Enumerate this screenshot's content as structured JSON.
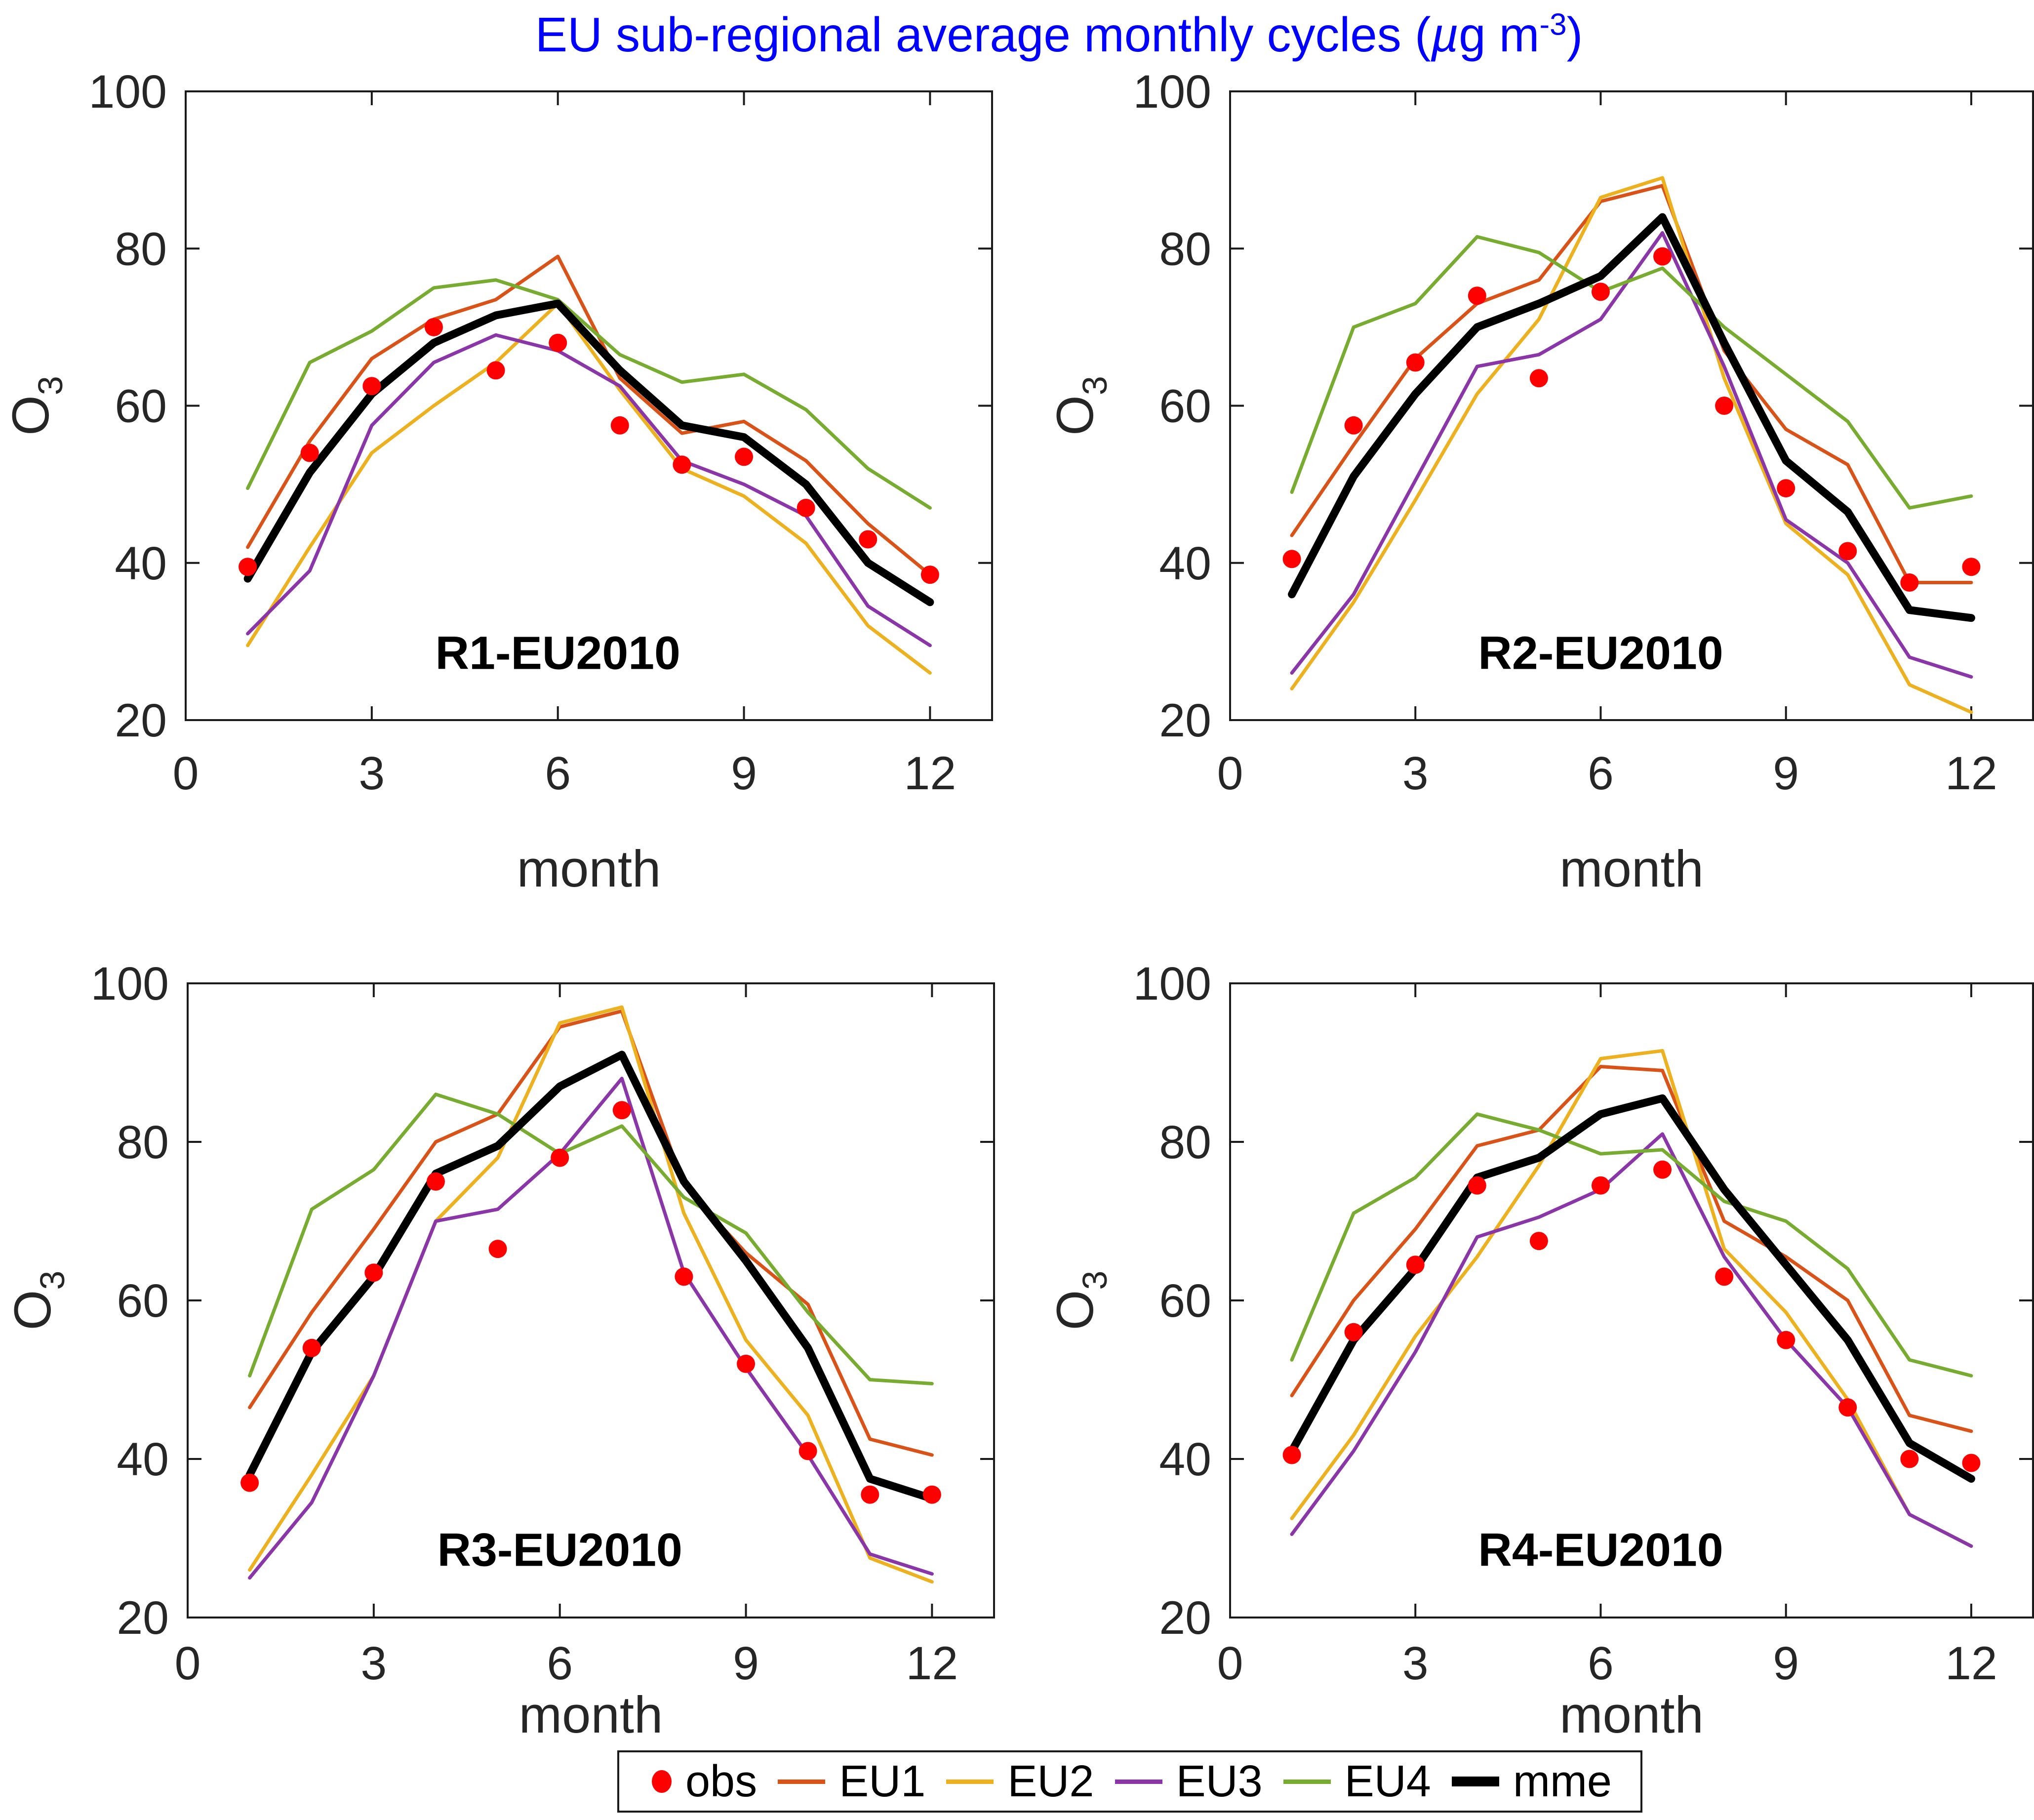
{
  "title": {
    "pre": "EU sub-regional average monthly cycles (",
    "mu": "µ",
    "mid": "g m",
    "sup": "-3",
    "post": ")"
  },
  "colors": {
    "obs": "#FF0000",
    "eu1": "#D95319",
    "eu2": "#EDB120",
    "eu3": "#8A35A8",
    "eu4": "#77AC30",
    "mme": "#000000",
    "title": "#0000FF",
    "axis": "#1A1A1A",
    "tick_text": "#262626"
  },
  "legend": {
    "entries": [
      {
        "label": "obs",
        "color_key": "obs",
        "marker": "dot"
      },
      {
        "label": "EU1",
        "color_key": "eu1",
        "marker": "line"
      },
      {
        "label": "EU2",
        "color_key": "eu2",
        "marker": "line"
      },
      {
        "label": "EU3",
        "color_key": "eu3",
        "marker": "line"
      },
      {
        "label": "EU4",
        "color_key": "eu4",
        "marker": "line"
      },
      {
        "label": "mme",
        "color_key": "mme",
        "marker": "thick-line"
      }
    ]
  },
  "chart_data": [
    {
      "type": "line",
      "panel_label": "R1-EU2010",
      "xlabel": "month",
      "ylabel": "O",
      "ylabel_sub": "3",
      "xlim": [
        0,
        13
      ],
      "ylim": [
        20,
        100
      ],
      "xticks": [
        0,
        3,
        6,
        9,
        12
      ],
      "yticks": [
        20,
        40,
        60,
        80,
        100
      ],
      "grid": false,
      "x": [
        1,
        2,
        3,
        4,
        5,
        6,
        7,
        8,
        9,
        10,
        11,
        12
      ],
      "series": [
        {
          "name": "obs",
          "color_key": "obs",
          "marker": "dot",
          "values": [
            39.5,
            54,
            62.5,
            70,
            64.5,
            68,
            57.5,
            52.5,
            53.5,
            47,
            43,
            38.5
          ]
        },
        {
          "name": "EU1",
          "color_key": "eu1",
          "values": [
            42,
            55.5,
            66,
            71,
            73.5,
            79,
            63.5,
            56.5,
            58,
            53,
            45,
            38.5
          ]
        },
        {
          "name": "EU2",
          "color_key": "eu2",
          "values": [
            29.5,
            42,
            54,
            60,
            65.5,
            73,
            62,
            52,
            48.5,
            42.5,
            32,
            26
          ]
        },
        {
          "name": "EU3",
          "color_key": "eu3",
          "values": [
            31,
            39,
            57.5,
            65.5,
            69,
            67,
            62.5,
            53,
            50,
            46,
            34.5,
            29.5
          ]
        },
        {
          "name": "EU4",
          "color_key": "eu4",
          "values": [
            49.5,
            65.5,
            69.5,
            75,
            76,
            73.5,
            66.5,
            63,
            64,
            59.5,
            52,
            47
          ]
        },
        {
          "name": "mme",
          "color_key": "mme",
          "thick": true,
          "values": [
            38,
            51.5,
            61.5,
            68,
            71.5,
            73,
            64.5,
            57.5,
            56,
            50,
            40,
            35
          ]
        }
      ]
    },
    {
      "type": "line",
      "panel_label": "R2-EU2010",
      "xlabel": "month",
      "ylabel": "O",
      "ylabel_sub": "3",
      "xlim": [
        0,
        13
      ],
      "ylim": [
        20,
        100
      ],
      "xticks": [
        0,
        3,
        6,
        9,
        12
      ],
      "yticks": [
        20,
        40,
        60,
        80,
        100
      ],
      "grid": false,
      "x": [
        1,
        2,
        3,
        4,
        5,
        6,
        7,
        8,
        9,
        10,
        11,
        12
      ],
      "series": [
        {
          "name": "obs",
          "color_key": "obs",
          "marker": "dot",
          "values": [
            40.5,
            57.5,
            65.5,
            74,
            63.5,
            74.5,
            79,
            60,
            49.5,
            41.5,
            37.5,
            39.5
          ]
        },
        {
          "name": "EU1",
          "color_key": "eu1",
          "values": [
            43.5,
            55,
            66,
            73,
            76,
            86,
            88,
            67,
            57,
            52.5,
            37.5,
            37.5
          ]
        },
        {
          "name": "EU2",
          "color_key": "eu2",
          "values": [
            24,
            35,
            48,
            61.5,
            71,
            86.5,
            89,
            63.5,
            45,
            38.5,
            24.5,
            21
          ]
        },
        {
          "name": "EU3",
          "color_key": "eu3",
          "values": [
            26,
            36,
            50.5,
            65,
            66.5,
            71,
            82,
            65,
            45.5,
            40,
            28,
            25.5
          ]
        },
        {
          "name": "EU4",
          "color_key": "eu4",
          "values": [
            49,
            70,
            73,
            81.5,
            79.5,
            74.5,
            77.5,
            70,
            64,
            58,
            47,
            48.5
          ]
        },
        {
          "name": "mme",
          "color_key": "mme",
          "thick": true,
          "values": [
            36,
            51,
            61.5,
            70,
            73,
            76.5,
            84,
            68,
            53,
            46.5,
            34,
            33
          ]
        }
      ]
    },
    {
      "type": "line",
      "panel_label": "R3-EU2010",
      "xlabel": "month",
      "ylabel": "O",
      "ylabel_sub": "3",
      "xlim": [
        0,
        13
      ],
      "ylim": [
        20,
        100
      ],
      "xticks": [
        0,
        3,
        6,
        9,
        12
      ],
      "yticks": [
        20,
        40,
        60,
        80,
        100
      ],
      "grid": false,
      "x": [
        1,
        2,
        3,
        4,
        5,
        6,
        7,
        8,
        9,
        10,
        11,
        12
      ],
      "series": [
        {
          "name": "obs",
          "color_key": "obs",
          "marker": "dot",
          "values": [
            37,
            54,
            63.5,
            75,
            66.5,
            78,
            84,
            63,
            52,
            41,
            35.5,
            35.5
          ]
        },
        {
          "name": "EU1",
          "color_key": "eu1",
          "values": [
            46.5,
            58.5,
            69,
            80,
            83.5,
            94.5,
            96.5,
            74.5,
            66,
            59.5,
            42.5,
            40.5
          ]
        },
        {
          "name": "EU2",
          "color_key": "eu2",
          "values": [
            26,
            38,
            50.5,
            70,
            78,
            95,
            97,
            71,
            55,
            45.5,
            27.5,
            24.5
          ]
        },
        {
          "name": "EU3",
          "color_key": "eu3",
          "values": [
            25,
            34.5,
            50.5,
            70,
            71.5,
            78.5,
            88,
            63.5,
            51.5,
            40.5,
            28,
            25.5
          ]
        },
        {
          "name": "EU4",
          "color_key": "eu4",
          "values": [
            50.5,
            71.5,
            76.5,
            86,
            83.5,
            78.5,
            82,
            73,
            68.5,
            58.5,
            50,
            49.5
          ]
        },
        {
          "name": "mme",
          "color_key": "mme",
          "thick": true,
          "values": [
            38,
            53.5,
            63,
            76,
            79.5,
            87,
            91,
            75,
            65,
            54,
            37.5,
            35
          ]
        }
      ]
    },
    {
      "type": "line",
      "panel_label": "R4-EU2010",
      "xlabel": "month",
      "ylabel": "O",
      "ylabel_sub": "3",
      "xlim": [
        0,
        13
      ],
      "ylim": [
        20,
        100
      ],
      "xticks": [
        0,
        3,
        6,
        9,
        12
      ],
      "yticks": [
        20,
        40,
        60,
        80,
        100
      ],
      "grid": false,
      "x": [
        1,
        2,
        3,
        4,
        5,
        6,
        7,
        8,
        9,
        10,
        11,
        12
      ],
      "series": [
        {
          "name": "obs",
          "color_key": "obs",
          "marker": "dot",
          "values": [
            40.5,
            56,
            64.5,
            74.5,
            67.5,
            74.5,
            76.5,
            63,
            55,
            46.5,
            40,
            39.5
          ]
        },
        {
          "name": "EU1",
          "color_key": "eu1",
          "values": [
            48,
            60,
            69,
            79.5,
            81.5,
            89.5,
            89,
            70,
            65.5,
            60,
            45.5,
            43.5
          ]
        },
        {
          "name": "EU2",
          "color_key": "eu2",
          "values": [
            32.5,
            43,
            55.5,
            65.5,
            77,
            90.5,
            91.5,
            66.5,
            58.5,
            47.5,
            33,
            29
          ]
        },
        {
          "name": "EU3",
          "color_key": "eu3",
          "values": [
            30.5,
            41,
            53.5,
            68,
            70.5,
            74,
            81,
            65.5,
            55,
            46.5,
            33,
            29
          ]
        },
        {
          "name": "EU4",
          "color_key": "eu4",
          "values": [
            52.5,
            71,
            75.5,
            83.5,
            81.5,
            78.5,
            79,
            72.5,
            70,
            64,
            52.5,
            50.5
          ]
        },
        {
          "name": "mme",
          "color_key": "mme",
          "thick": true,
          "values": [
            41,
            55,
            64,
            75.5,
            78,
            83.5,
            85.5,
            74,
            64.5,
            55,
            42,
            37.5
          ]
        }
      ]
    }
  ]
}
